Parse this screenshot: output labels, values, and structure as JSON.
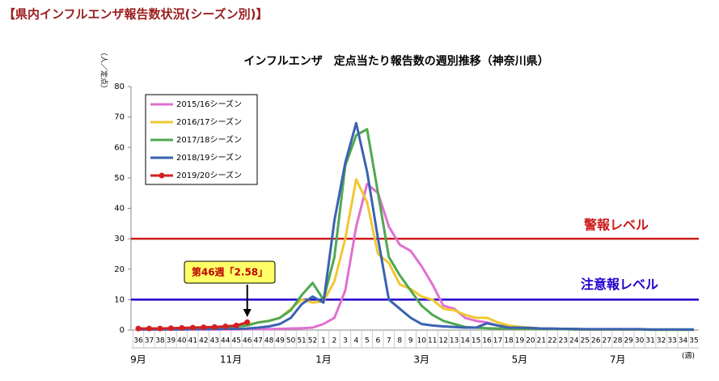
{
  "header": "【県内インフルエンザ報告数状況(シーズン別)】",
  "chart_data": {
    "type": "line",
    "title": "インフルエンザ　定点当たり報告数の週別推移（神奈川県）",
    "y_label": "（人／定点）",
    "x_unit": "(週)",
    "categories": [
      "36",
      "37",
      "38",
      "39",
      "40",
      "41",
      "42",
      "43",
      "44",
      "45",
      "46",
      "47",
      "48",
      "49",
      "50",
      "51",
      "52",
      "1",
      "2",
      "3",
      "4",
      "5",
      "6",
      "7",
      "8",
      "9",
      "10",
      "11",
      "12",
      "13",
      "14",
      "15",
      "16",
      "17",
      "18",
      "19",
      "20",
      "21",
      "22",
      "23",
      "24",
      "25",
      "26",
      "27",
      "28",
      "29",
      "30",
      "31",
      "32",
      "33",
      "34",
      "35"
    ],
    "months": [
      "9月",
      "11月",
      "1月",
      "3月",
      "5月",
      "7月"
    ],
    "ylim": [
      0,
      80
    ],
    "yticks": [
      0,
      10,
      20,
      30,
      40,
      50,
      60,
      70,
      80
    ],
    "legend": "top-left",
    "series": [
      {
        "name": "2015/16シーズン",
        "color": "#e070d0",
        "values": [
          0.2,
          0.2,
          0.2,
          0.2,
          0.2,
          0.2,
          0.2,
          0.2,
          0.2,
          0.2,
          0.3,
          0.3,
          0.3,
          0.4,
          0.5,
          0.6,
          0.8,
          2,
          4,
          13,
          34,
          48,
          45,
          34,
          28,
          26,
          21,
          15,
          8,
          7,
          4,
          3,
          2.5,
          1.5,
          1,
          0.7,
          0.5,
          0.4,
          0.3,
          0.3,
          0.2,
          0.2,
          0.2,
          0.2,
          0.2,
          0.2,
          0.2,
          0.1,
          0.1,
          0.1,
          0.1,
          0.1
        ]
      },
      {
        "name": "2016/17シーズン",
        "color": "#f0c830",
        "values": [
          0.3,
          0.3,
          0.3,
          0.3,
          0.4,
          0.5,
          0.6,
          0.8,
          1,
          1.3,
          1.8,
          2.5,
          3,
          4,
          7,
          10,
          9,
          9.5,
          16,
          30,
          49.5,
          42,
          25,
          22,
          15,
          13.5,
          11,
          10,
          7,
          6.5,
          5,
          4,
          4,
          2.5,
          1.5,
          1,
          0.8,
          0.5,
          0.4,
          0.3,
          0.3,
          0.2,
          0.2,
          0.2,
          0.2,
          0.2,
          0.2,
          0.1,
          0.1,
          0.1,
          0.1,
          0.1
        ]
      },
      {
        "name": "2017/18シーズン",
        "color": "#50a850",
        "values": [
          0.5,
          0.5,
          0.5,
          0.5,
          0.6,
          0.7,
          0.8,
          0.9,
          1,
          1.2,
          1.5,
          2.5,
          3,
          4,
          6.5,
          11.5,
          15.5,
          10,
          24,
          54,
          64,
          66,
          45,
          24,
          18,
          13,
          8,
          5,
          3,
          2,
          1,
          0.8,
          0.6,
          0.5,
          0.5,
          0.4,
          0.4,
          0.3,
          0.3,
          0.3,
          0.2,
          0.2,
          0.2,
          0.2,
          0.2,
          0.2,
          0.2,
          0.1,
          0.1,
          0.1,
          0.1,
          0.1
        ]
      },
      {
        "name": "2018/19シーズン",
        "color": "#3a62b0",
        "values": [
          0.2,
          0.2,
          0.2,
          0.2,
          0.2,
          0.3,
          0.3,
          0.3,
          0.4,
          0.4,
          0.5,
          0.8,
          1.2,
          2,
          4,
          8.5,
          11,
          9,
          36,
          55,
          68,
          52,
          30,
          10,
          7,
          4,
          2,
          1.5,
          1.2,
          1,
          0.8,
          0.8,
          2.2,
          1.5,
          0.8,
          0.8,
          0.7,
          0.5,
          0.5,
          0.4,
          0.4,
          0.3,
          0.3,
          0.3,
          0.3,
          0.3,
          0.3,
          0.2,
          0.2,
          0.2,
          0.2,
          0.2
        ]
      },
      {
        "name": "2019/20シーズン",
        "color": "#d42020",
        "markers": true,
        "values": [
          0.5,
          0.5,
          0.5,
          0.6,
          0.7,
          0.8,
          0.9,
          1.0,
          1.2,
          1.5,
          2.58,
          null,
          null,
          null,
          null,
          null,
          null,
          null,
          null,
          null,
          null,
          null,
          null,
          null,
          null,
          null,
          null,
          null,
          null,
          null,
          null,
          null,
          null,
          null,
          null,
          null,
          null,
          null,
          null,
          null,
          null,
          null,
          null,
          null,
          null,
          null,
          null,
          null,
          null,
          null,
          null,
          null
        ]
      }
    ],
    "thresholds": [
      {
        "value": 30,
        "label": "警報レベル",
        "color": "#cc1a1a"
      },
      {
        "value": 10,
        "label": "注意報レベル",
        "color": "#2200cc"
      }
    ],
    "annotation": "第46週「2.58」"
  }
}
